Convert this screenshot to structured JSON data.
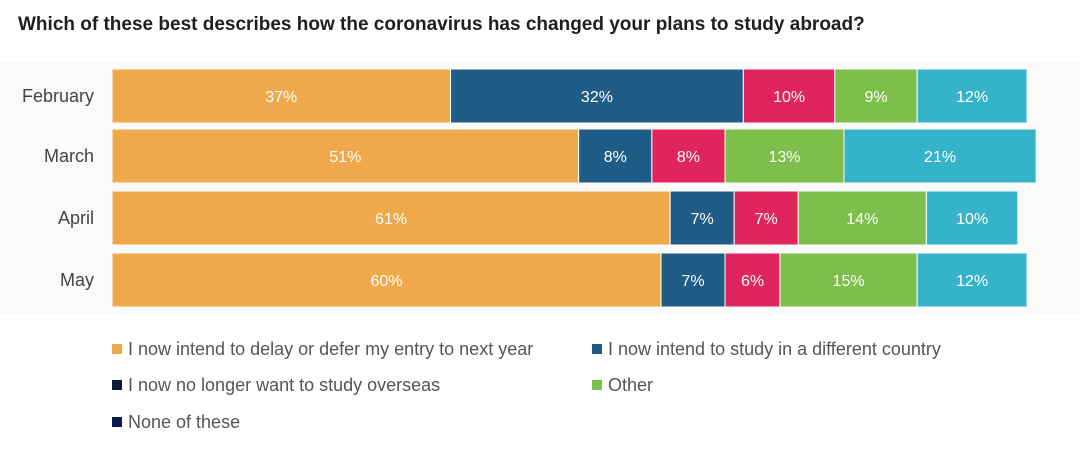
{
  "chart_data": {
    "type": "bar",
    "orientation": "horizontal",
    "stacked": true,
    "title": "Which of these best describes how the coronavirus has changed your plans to study abroad?",
    "categories": [
      "February",
      "March",
      "April",
      "May"
    ],
    "series": [
      {
        "name": "I now intend to delay or defer my entry to next year",
        "values": [
          37,
          51,
          61,
          60
        ],
        "labels": [
          "37%",
          "51%",
          "61%",
          "60%"
        ],
        "color": "#f0a94a"
      },
      {
        "name": "I now intend to study in a different country",
        "values": [
          32,
          8,
          7,
          7
        ],
        "labels": [
          "32%",
          "8%",
          "7%",
          "7%"
        ],
        "color": "#1f5c86"
      },
      {
        "name": "I now no longer want to study overseas",
        "values": [
          10,
          8,
          7,
          6
        ],
        "labels": [
          "10%",
          "8%",
          "7%",
          "6%"
        ],
        "color": "#e0245e",
        "legend_color": "#0b1a3b"
      },
      {
        "name": "Other",
        "values": [
          9,
          13,
          14,
          15
        ],
        "labels": [
          "9%",
          "13%",
          "14%",
          "15%"
        ],
        "color": "#7dbf4a"
      },
      {
        "name": "None of these",
        "values": [
          12,
          21,
          10,
          12
        ],
        "labels": [
          "12%",
          "21%",
          "10%",
          "12%"
        ],
        "color": "#35b3c9",
        "legend_color": "#0b1a4d"
      }
    ],
    "xlabel": "",
    "ylabel": "",
    "grid": false,
    "legend_position": "bottom"
  }
}
